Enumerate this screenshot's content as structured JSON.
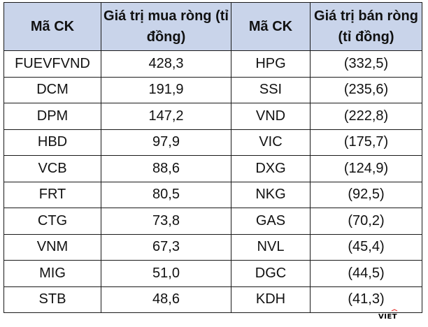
{
  "table": {
    "headers": {
      "buy_code": "Mã CK",
      "buy_value": "Giá trị mua ròng (tỉ đồng)",
      "sell_code": "Mã CK",
      "sell_value": "Giá trị bán ròng (tỉ đồng)"
    },
    "rows": [
      {
        "buy_code": "FUEVFVND",
        "buy_value": "428,3",
        "sell_code": "HPG",
        "sell_value": "(332,5)"
      },
      {
        "buy_code": "DCM",
        "buy_value": "191,9",
        "sell_code": "SSI",
        "sell_value": "(235,6)"
      },
      {
        "buy_code": "DPM",
        "buy_value": "147,2",
        "sell_code": "VND",
        "sell_value": "(222,8)"
      },
      {
        "buy_code": "HBD",
        "buy_value": "97,9",
        "sell_code": "VIC",
        "sell_value": "(175,7)"
      },
      {
        "buy_code": "VCB",
        "buy_value": "88,6",
        "sell_code": "DXG",
        "sell_value": "(124,9)"
      },
      {
        "buy_code": "FRT",
        "buy_value": "80,5",
        "sell_code": "NKG",
        "sell_value": "(92,5)"
      },
      {
        "buy_code": "CTG",
        "buy_value": "73,8",
        "sell_code": "GAS",
        "sell_value": "(70,2)"
      },
      {
        "buy_code": "VNM",
        "buy_value": "67,3",
        "sell_code": "NVL",
        "sell_value": "(45,4)"
      },
      {
        "buy_code": "MIG",
        "buy_value": "51,0",
        "sell_code": "DGC",
        "sell_value": "(44,5)"
      },
      {
        "buy_code": "STB",
        "buy_value": "48,6",
        "sell_code": "KDH",
        "sell_value": "(41,3)"
      }
    ]
  },
  "watermark": {
    "text": "VIET",
    "color": "#e53935"
  },
  "colors": {
    "header_bg": "#c9d4ea",
    "border": "#1a1a1a"
  }
}
